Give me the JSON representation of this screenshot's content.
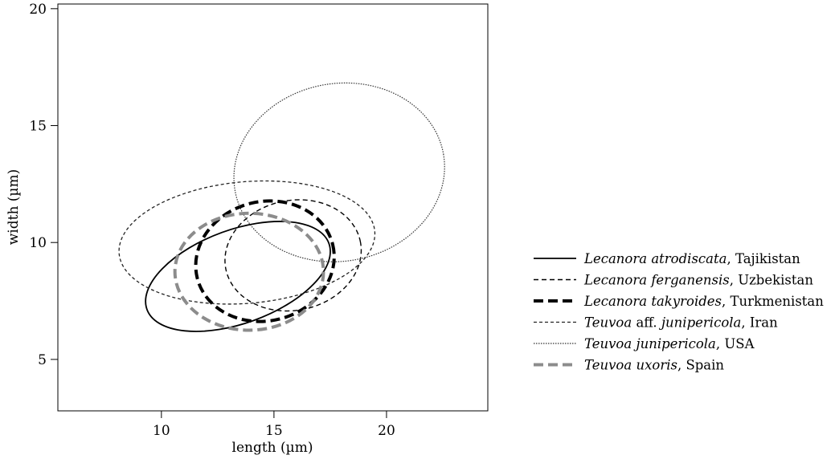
{
  "chart_data": {
    "type": "scatter",
    "xlabel": "length (µm)",
    "ylabel": "width (µm)",
    "xlim": [
      5.4,
      24.5
    ],
    "ylim": [
      2.8,
      20.2
    ],
    "xticks": [
      10,
      15,
      20
    ],
    "yticks": [
      5,
      10,
      15,
      20
    ],
    "grid": false,
    "legend_position": "right",
    "series": [
      {
        "name_italic": "Lecanora atrodiscata",
        "name_rest": ", Tajikistan",
        "style": "solid",
        "color": "#000000",
        "ellipse": {
          "cx": 13.4,
          "cy": 8.55,
          "rx": 4.3,
          "ry": 2.0,
          "angle_deg": 20
        }
      },
      {
        "name_italic": "Lecanora ferganensis",
        "name_rest": ", Uzbekistan",
        "style": "dashed",
        "color": "#000000",
        "ellipse": {
          "cx": 15.85,
          "cy": 9.45,
          "rx": 3.05,
          "ry": 2.35,
          "angle_deg": 12
        }
      },
      {
        "name_italic": "Lecanora takyroides",
        "name_rest": ", Turkmenistan",
        "style": "thick-dashed",
        "color": "#000000",
        "ellipse": {
          "cx": 14.6,
          "cy": 9.2,
          "rx": 3.1,
          "ry": 2.55,
          "angle_deg": 14
        }
      },
      {
        "name_prefix": "",
        "name_italic": "Teuvoa",
        "name_rest": " aff. ",
        "name_italic2": "junipericola",
        "name_rest2": ", Iran",
        "style": "dotted-dash",
        "color": "#222222",
        "ellipse": {
          "cx": 13.8,
          "cy": 10.0,
          "rx": 5.7,
          "ry": 2.6,
          "angle_deg": 5
        }
      },
      {
        "name_italic": "Teuvoa junipericola",
        "name_rest": ", USA",
        "style": "dotted",
        "color": "#333333",
        "ellipse": {
          "cx": 17.9,
          "cy": 13.0,
          "rx": 4.7,
          "ry": 3.8,
          "angle_deg": 10
        }
      },
      {
        "name_italic": "Teuvoa uxoris",
        "name_rest": ", Spain",
        "style": "gray-dashed",
        "color": "#8c8c8c",
        "ellipse": {
          "cx": 13.9,
          "cy": 8.75,
          "rx": 3.3,
          "ry": 2.5,
          "angle_deg": 0
        }
      }
    ]
  }
}
